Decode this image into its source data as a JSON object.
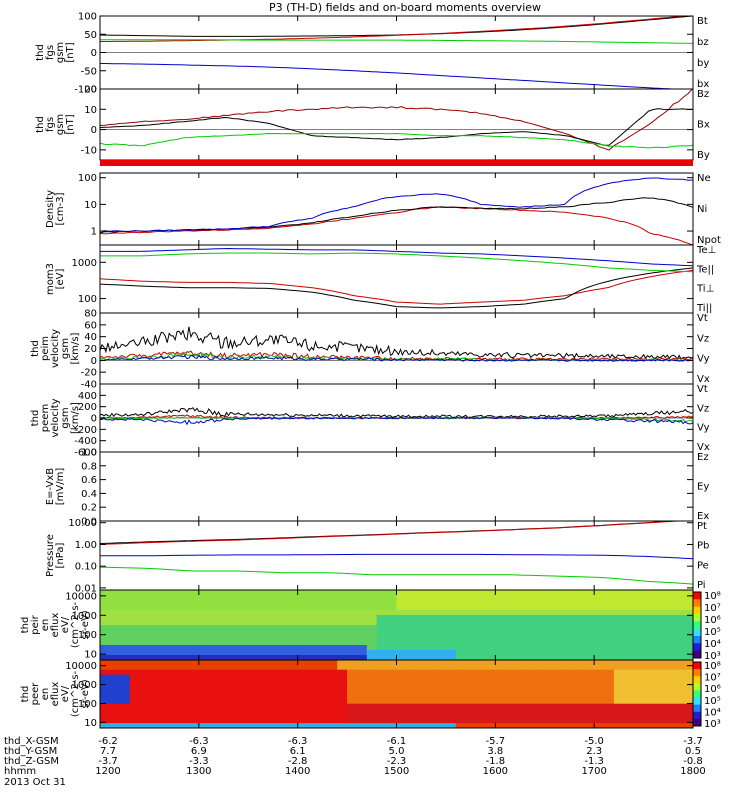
{
  "title": "P3 (TH-D) fields and on-board moments overview",
  "colors": {
    "black": "#000000",
    "red": "#cc0000",
    "green": "#00cc00",
    "blue": "#0000cc",
    "wine": "#990000"
  },
  "chart_data": [
    {
      "id": "fgs_gse",
      "type": "line",
      "ylabel": [
        "thd",
        "fgs",
        "gsm",
        "[nT]"
      ],
      "ylim": [
        -100,
        100
      ],
      "yticks": [
        "100",
        "50",
        "0",
        "-50",
        "-100"
      ],
      "tickvals": [
        100,
        50,
        0,
        -50,
        -100
      ],
      "legend": [
        {
          "name": "Bt",
          "color": "black"
        },
        {
          "name": "bz",
          "color": "red"
        },
        {
          "name": "by",
          "color": "green"
        },
        {
          "name": "bx",
          "color": "blue"
        }
      ],
      "series": [
        {
          "name": "Bt",
          "color": "black",
          "values": [
            48,
            46,
            44,
            44,
            45,
            46,
            48,
            52,
            58,
            66,
            76,
            88,
            100
          ]
        },
        {
          "name": "bz",
          "color": "red",
          "values": [
            30,
            31,
            33,
            35,
            38,
            42,
            47,
            53,
            60,
            68,
            78,
            90,
            102
          ]
        },
        {
          "name": "by",
          "color": "green",
          "values": [
            35,
            35,
            35,
            34,
            34,
            34,
            34,
            33,
            32,
            31,
            29,
            27,
            25
          ]
        },
        {
          "name": "bx",
          "color": "blue",
          "values": [
            -30,
            -32,
            -35,
            -38,
            -43,
            -49,
            -56,
            -64,
            -72,
            -80,
            -88,
            -96,
            -103
          ]
        }
      ]
    },
    {
      "id": "fgs_detrend",
      "type": "line",
      "ylabel": [
        "thd",
        "fgs",
        "gsm",
        "[nT]"
      ],
      "ylim": [
        -15,
        20
      ],
      "yticks": [
        "20",
        "10",
        "0",
        "-10"
      ],
      "tickvals": [
        20,
        10,
        0,
        -10
      ],
      "legend": [
        {
          "name": "Bz",
          "color": "wine"
        },
        {
          "name": "Bx",
          "color": "black"
        },
        {
          "name": "By",
          "color": "green"
        }
      ],
      "series": [
        {
          "name": "Bz",
          "color": "wine",
          "values": [
            2,
            4,
            5,
            7,
            9,
            10,
            11,
            11,
            10,
            8,
            4,
            -2,
            -10,
            3,
            20
          ]
        },
        {
          "name": "Bx",
          "color": "black",
          "values": [
            1,
            2,
            4,
            6,
            3,
            -3,
            -4,
            -5,
            -4,
            -2,
            -1,
            -3,
            -8,
            10,
            10
          ]
        },
        {
          "name": "By",
          "color": "green",
          "values": [
            -7,
            -8,
            -4,
            -3,
            -2,
            -2,
            -2,
            -2,
            -3,
            -3,
            -4,
            -5,
            -8,
            -9,
            -8
          ]
        }
      ]
    },
    {
      "id": "density",
      "type": "line",
      "ylabel": [
        "Density",
        "[cm-3]"
      ],
      "ylim": [
        0.3,
        150
      ],
      "scale": "log",
      "yticks": [
        "100",
        "10",
        "1"
      ],
      "tickvals": [
        100,
        10,
        1
      ],
      "legend": [
        {
          "name": "Ne",
          "color": "red"
        },
        {
          "name": "Ni",
          "color": "black"
        },
        {
          "name": "Npot",
          "color": "blue"
        }
      ],
      "series": [
        {
          "name": "Ne",
          "color": "red",
          "values": [
            0.8,
            0.9,
            1.0,
            1.1,
            1.3,
            1.8,
            3,
            5,
            8,
            7,
            6,
            5,
            3,
            0.8,
            0.3
          ]
        },
        {
          "name": "Ni",
          "color": "black",
          "values": [
            0.9,
            1.0,
            1.1,
            1.2,
            1.4,
            2,
            3.5,
            6,
            8,
            7,
            7,
            8,
            12,
            18,
            8
          ]
        },
        {
          "name": "Npot",
          "color": "blue",
          "values": [
            1.0,
            1.0,
            1.1,
            1.2,
            1.5,
            3,
            8,
            20,
            25,
            10,
            8,
            10,
            60,
            100,
            80
          ]
        }
      ]
    },
    {
      "id": "temperature",
      "type": "line",
      "ylabel": [
        "mom3",
        "[eV]"
      ],
      "ylim": [
        40,
        3000
      ],
      "scale": "log",
      "yticks": [
        "1000",
        "100"
      ],
      "tickvals": [
        1000,
        100
      ],
      "legend": [
        {
          "name": "Te⊥",
          "color": "red"
        },
        {
          "name": "Te||",
          "color": "black"
        },
        {
          "name": "Ti⊥",
          "color": "blue"
        },
        {
          "name": "Ti||",
          "color": "green"
        }
      ],
      "series": [
        {
          "name": "Te⊥",
          "color": "red",
          "values": [
            350,
            300,
            280,
            280,
            260,
            200,
            120,
            80,
            70,
            80,
            90,
            120,
            200,
            400,
            600
          ]
        },
        {
          "name": "Te||",
          "color": "black",
          "values": [
            250,
            220,
            200,
            200,
            190,
            150,
            90,
            60,
            55,
            60,
            70,
            100,
            300,
            500,
            700
          ]
        },
        {
          "name": "Ti⊥",
          "color": "blue",
          "values": [
            2000,
            2000,
            2200,
            2400,
            2300,
            2200,
            2200,
            2000,
            1800,
            1700,
            1500,
            1300,
            1100,
            900,
            800
          ]
        },
        {
          "name": "Ti||",
          "color": "green",
          "values": [
            1500,
            1500,
            1700,
            1800,
            1800,
            1700,
            1800,
            1700,
            1500,
            1300,
            1100,
            900,
            700,
            600,
            550
          ]
        }
      ]
    },
    {
      "id": "peim_velocity",
      "type": "line",
      "ylabel": [
        "thd",
        "peim",
        "velocity",
        "gsm",
        "[km/s]"
      ],
      "ylim": [
        -40,
        80
      ],
      "yticks": [
        "80",
        "60",
        "40",
        "20",
        "0",
        "-20",
        "-40"
      ],
      "tickvals": [
        80,
        60,
        40,
        20,
        0,
        -20,
        -40
      ],
      "legend": [
        {
          "name": "Vt",
          "color": "black"
        },
        {
          "name": "Vz",
          "color": "red"
        },
        {
          "name": "Vy",
          "color": "green"
        },
        {
          "name": "Vx",
          "color": "blue"
        }
      ],
      "series": [
        {
          "name": "Vt",
          "color": "black",
          "values": [
            20,
            30,
            45,
            30,
            35,
            25,
            22,
            15,
            12,
            10,
            8,
            8,
            7,
            6,
            5
          ]
        },
        {
          "name": "Vz",
          "color": "red",
          "values": [
            5,
            8,
            12,
            8,
            10,
            6,
            5,
            3,
            3,
            2,
            2,
            2,
            2,
            2,
            2
          ]
        },
        {
          "name": "Vy",
          "color": "green",
          "values": [
            2,
            5,
            10,
            5,
            6,
            4,
            3,
            2,
            2,
            1,
            1,
            1,
            1,
            1,
            1
          ]
        },
        {
          "name": "Vx",
          "color": "blue",
          "values": [
            0,
            3,
            6,
            3,
            4,
            2,
            2,
            1,
            1,
            0,
            0,
            0,
            0,
            0,
            0
          ]
        }
      ]
    },
    {
      "id": "peem_velocity",
      "type": "line",
      "ylabel": [
        "thd",
        "peem",
        "velocity",
        "gsm",
        "[km/s]"
      ],
      "ylim": [
        -600,
        600
      ],
      "yticks": [
        "400",
        "200",
        "0",
        "-200",
        "-400",
        "-600"
      ],
      "tickvals": [
        400,
        200,
        0,
        -200,
        -400,
        -600
      ],
      "legend": [
        {
          "name": "Vt",
          "color": "black"
        },
        {
          "name": "Vz",
          "color": "red"
        },
        {
          "name": "Vy",
          "color": "green"
        },
        {
          "name": "Vx",
          "color": "blue"
        }
      ],
      "series": [
        {
          "name": "Vt",
          "color": "black",
          "values": [
            50,
            60,
            150,
            70,
            60,
            50,
            40,
            30,
            30,
            30,
            30,
            30,
            40,
            80,
            120
          ]
        },
        {
          "name": "Vz",
          "color": "red",
          "values": [
            0,
            10,
            40,
            10,
            5,
            0,
            0,
            0,
            0,
            0,
            0,
            0,
            0,
            10,
            20
          ]
        },
        {
          "name": "Vy",
          "color": "green",
          "values": [
            -10,
            -5,
            10,
            0,
            0,
            0,
            0,
            0,
            0,
            0,
            0,
            0,
            -10,
            -30,
            -50
          ]
        },
        {
          "name": "Vx",
          "color": "blue",
          "values": [
            -20,
            -30,
            -80,
            -20,
            -10,
            -5,
            -5,
            0,
            0,
            0,
            0,
            -10,
            -30,
            -60,
            -80
          ]
        }
      ]
    },
    {
      "id": "efield",
      "type": "line",
      "ylabel": [
        "E=-VxB",
        "[mV/m]"
      ],
      "ylim": [
        0,
        1
      ],
      "yticks": [
        "1.0",
        "0.8",
        "0.6",
        "0.4",
        "0.2",
        "0.0"
      ],
      "tickvals": [
        1,
        0.8,
        0.6,
        0.4,
        0.2,
        0
      ],
      "legend": [
        {
          "name": "Ez",
          "color": "red"
        },
        {
          "name": "Ey",
          "color": "green"
        },
        {
          "name": "Ex",
          "color": "blue"
        }
      ],
      "series": []
    },
    {
      "id": "pressure",
      "type": "line",
      "ylabel": [
        "Pressure",
        "[nPa]"
      ],
      "ylim": [
        0.008,
        12
      ],
      "scale": "log",
      "yticks": [
        "10.00",
        "1.00",
        "0.10",
        "0.01"
      ],
      "tickvals": [
        10,
        1,
        0.1,
        0.01
      ],
      "legend": [
        {
          "name": "Pt",
          "color": "black"
        },
        {
          "name": "Pb",
          "color": "red"
        },
        {
          "name": "Pe",
          "color": "green"
        },
        {
          "name": "Pi",
          "color": "blue"
        }
      ],
      "series": [
        {
          "name": "Pt",
          "color": "black",
          "values": [
            1.1,
            1.3,
            1.5,
            1.7,
            2.0,
            2.4,
            2.8,
            3.4,
            4.0,
            4.8,
            5.8,
            7.5,
            10,
            14
          ]
        },
        {
          "name": "Pb",
          "color": "red",
          "values": [
            1.0,
            1.2,
            1.4,
            1.6,
            1.9,
            2.3,
            2.7,
            3.3,
            3.9,
            4.7,
            5.7,
            7.4,
            9.8,
            13
          ]
        },
        {
          "name": "Pi",
          "color": "blue",
          "values": [
            0.3,
            0.3,
            0.32,
            0.33,
            0.33,
            0.34,
            0.35,
            0.35,
            0.35,
            0.34,
            0.33,
            0.32,
            0.28,
            0.22
          ]
        },
        {
          "name": "Pe",
          "color": "green",
          "values": [
            0.09,
            0.08,
            0.06,
            0.06,
            0.05,
            0.05,
            0.04,
            0.04,
            0.04,
            0.04,
            0.035,
            0.03,
            0.02,
            0.015
          ]
        }
      ]
    },
    {
      "id": "peir_spectrogram",
      "type": "heatmap",
      "ylabel": [
        "thd",
        "peir",
        "en",
        "eflux",
        "eV/",
        "(cm^2-s-",
        "sr-eV)"
      ],
      "ylim": [
        5,
        20000
      ],
      "scale": "log",
      "yticks": [
        "10000",
        "1000",
        "100",
        "10"
      ],
      "tickvals": [
        10000,
        1000,
        100,
        10
      ]
    },
    {
      "id": "peer_spectrogram",
      "type": "heatmap",
      "ylabel": [
        "thd",
        "peer",
        "en",
        "eflux",
        "eV/",
        "(cm^2-s-",
        "sr-eV)"
      ],
      "ylim": [
        5,
        20000
      ],
      "scale": "log",
      "yticks": [
        "10000",
        "1000",
        "100",
        "10"
      ],
      "tickvals": [
        10000,
        1000,
        100,
        10
      ]
    }
  ],
  "colorbar": {
    "labels": [
      "10⁸",
      "10⁷",
      "10⁶",
      "10⁵",
      "10⁴",
      "10³"
    ]
  },
  "x_axis": {
    "rows": [
      {
        "label": "thd_X-GSM",
        "values": [
          "-6.2",
          "-6.3",
          "-6.3",
          "-6.1",
          "-5.7",
          "-5.0",
          "-3.7"
        ]
      },
      {
        "label": "thd_Y-GSM",
        "values": [
          "7.7",
          "6.9",
          "6.1",
          "5.0",
          "3.8",
          "2.3",
          "0.5"
        ]
      },
      {
        "label": "thd_Z-GSM",
        "values": [
          "-3.7",
          "-3.3",
          "-2.8",
          "-2.3",
          "-1.8",
          "-1.3",
          "-0.8"
        ]
      },
      {
        "label": "hhmm",
        "values": [
          "1200",
          "1300",
          "1400",
          "1500",
          "1600",
          "1700",
          "1800"
        ]
      }
    ],
    "date": "2013 Oct 31"
  }
}
